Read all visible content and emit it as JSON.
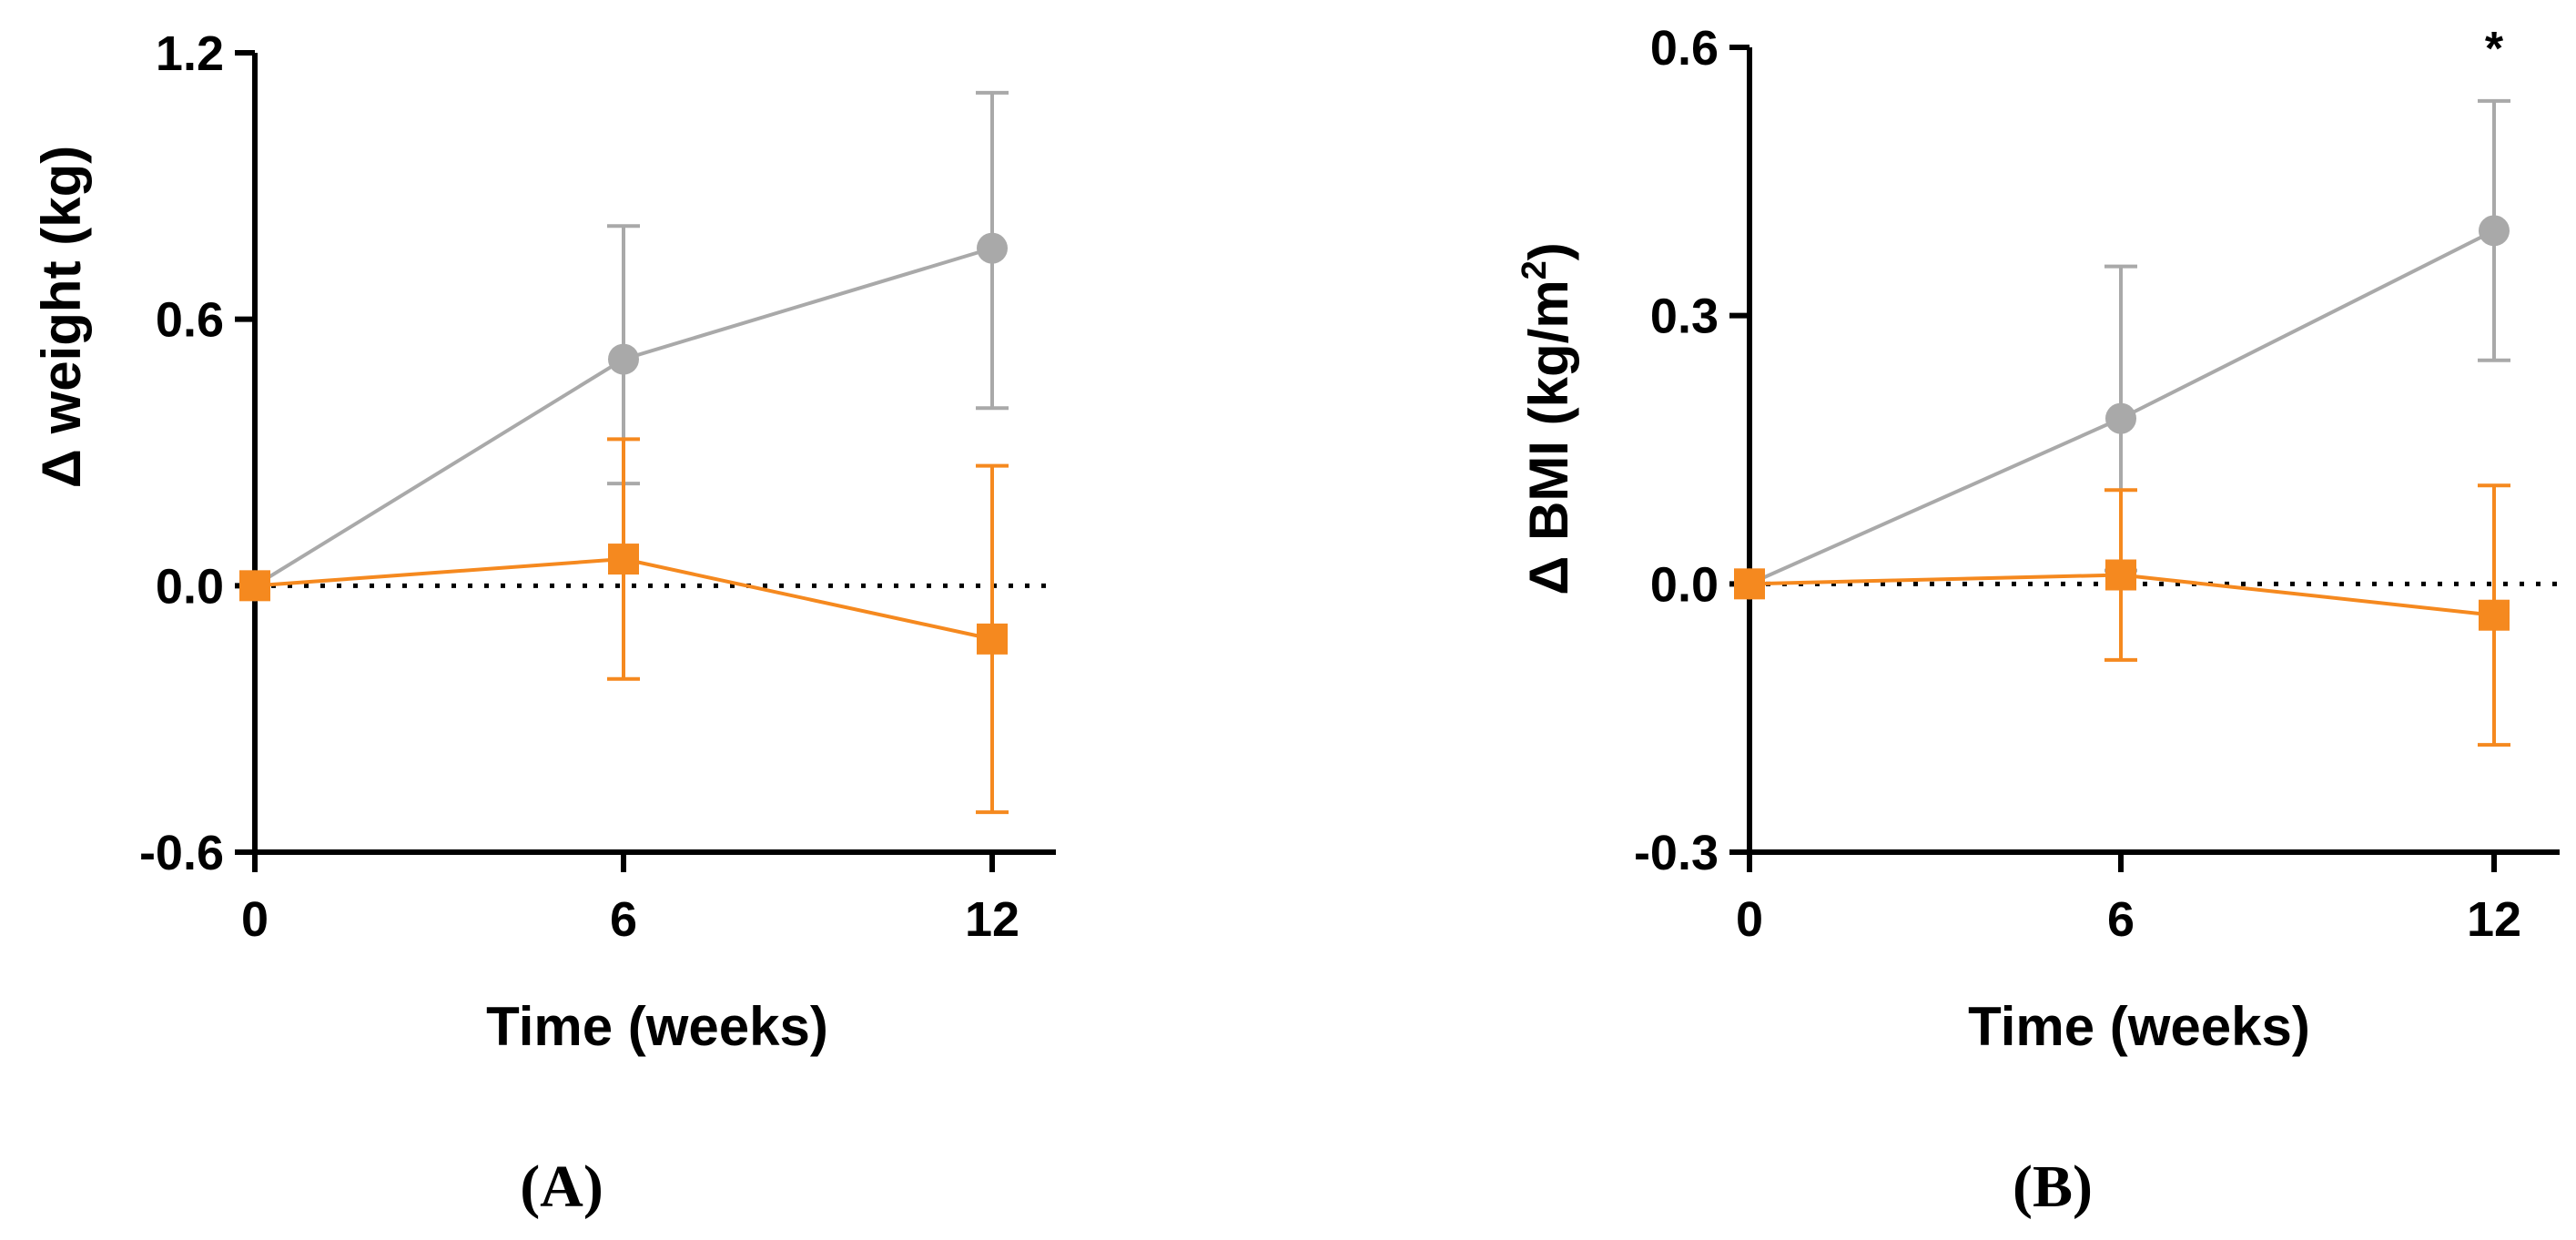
{
  "chart_data": [
    {
      "type": "line",
      "panel_label": "(A)",
      "xlabel": "Time (weeks)",
      "ylabel": "Δ weight (kg)",
      "x": [
        0,
        6,
        12
      ],
      "x_ticks": [
        "0",
        "6",
        "12"
      ],
      "y_ticks": [
        "-0.6",
        "0.0",
        "0.6",
        "1.2"
      ],
      "xlim": [
        0,
        12
      ],
      "ylim": [
        -0.6,
        1.2
      ],
      "reference_line": 0,
      "grid": false,
      "legend": "none",
      "annotations": [],
      "series": [
        {
          "color": "#a9a9a9",
          "marker": "circle",
          "values": [
            0,
            0.51,
            0.76
          ],
          "error_upper": [
            0,
            0.81,
            1.11
          ],
          "error_lower": [
            0,
            0.23,
            0.4
          ]
        },
        {
          "color": "#f5891f",
          "marker": "square",
          "values": [
            0,
            0.06,
            -0.12
          ],
          "error_upper": [
            0,
            0.33,
            0.27
          ],
          "error_lower": [
            0,
            -0.21,
            -0.51
          ]
        }
      ]
    },
    {
      "type": "line",
      "panel_label": "(B)",
      "xlabel": "Time (weeks)",
      "ylabel_main": "Δ BMI (kg/m",
      "ylabel_sup": "2",
      "ylabel_end": ")",
      "x": [
        0,
        6,
        12
      ],
      "x_ticks": [
        "0",
        "6",
        "12"
      ],
      "y_ticks": [
        "-0.3",
        "0.0",
        "0.3",
        "0.6"
      ],
      "xlim": [
        0,
        12
      ],
      "ylim": [
        -0.3,
        0.6
      ],
      "reference_line": 0,
      "grid": false,
      "legend": "none",
      "annotations": [
        {
          "text": "*",
          "x": 12
        }
      ],
      "series": [
        {
          "color": "#a9a9a9",
          "marker": "circle",
          "values": [
            0,
            0.185,
            0.395
          ],
          "error_upper": [
            0,
            0.355,
            0.54
          ],
          "error_lower": [
            0,
            0.015,
            0.25
          ]
        },
        {
          "color": "#f5891f",
          "marker": "square",
          "values": [
            0,
            0.01,
            -0.035
          ],
          "error_upper": [
            0,
            0.105,
            0.11
          ],
          "error_lower": [
            0,
            -0.085,
            -0.18
          ]
        }
      ]
    }
  ]
}
